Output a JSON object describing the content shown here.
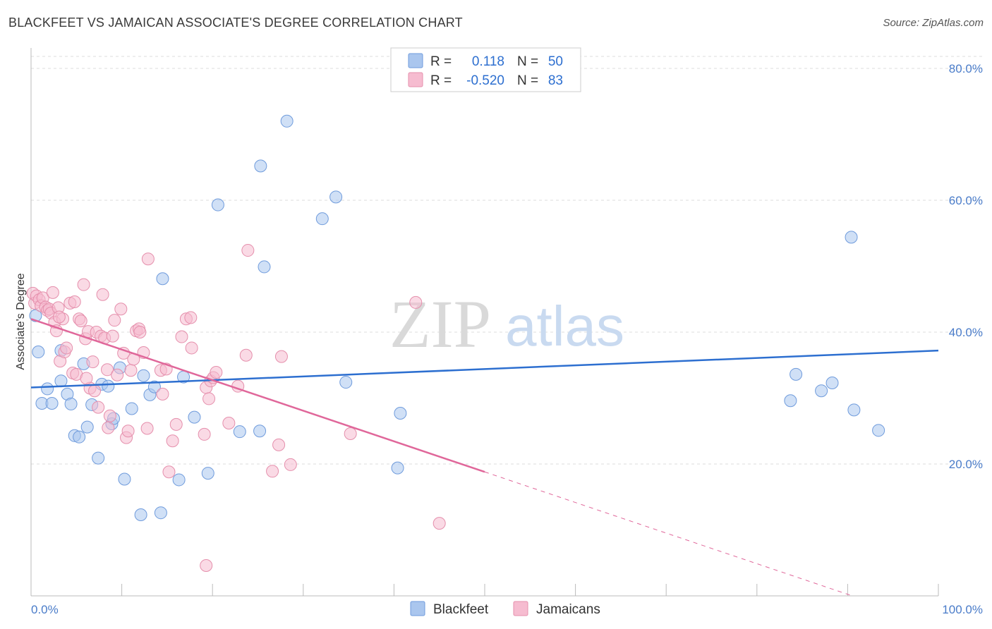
{
  "header": {
    "title": "BLACKFEET VS JAMAICAN ASSOCIATE'S DEGREE CORRELATION CHART",
    "source": "Source: ZipAtlas.com"
  },
  "watermark": {
    "zip": "ZIP",
    "atlas": "atlas"
  },
  "legend_box": {
    "rows": [
      {
        "r_label": "R =",
        "r_value": "0.118",
        "n_label": "N =",
        "n_value": "50"
      },
      {
        "r_label": "R =",
        "r_value": "-0.520",
        "n_label": "N =",
        "n_value": "83"
      }
    ]
  },
  "colors": {
    "blackfeet_fill": "#aac6ee",
    "blackfeet_stroke": "#6f9bdc",
    "blackfeet_line": "#2d6fd0",
    "jamaicans_fill": "#f6bcd0",
    "jamaicans_stroke": "#e58fac",
    "jamaicans_line": "#e0679a",
    "axis_text": "#4a7cc9",
    "grid": "#dddddd"
  },
  "chart_data": {
    "type": "scatter",
    "title": "BLACKFEET VS JAMAICAN ASSOCIATE'S DEGREE CORRELATION CHART",
    "xlabel": "",
    "ylabel": "Associate's Degree",
    "xlim": [
      0,
      100
    ],
    "ylim": [
      0,
      80
    ],
    "x_tick_labels": [
      "0.0%",
      "100.0%"
    ],
    "y_ticks": [
      20,
      40,
      60,
      80
    ],
    "y_tick_labels": [
      "20.0%",
      "40.0%",
      "60.0%",
      "80.0%"
    ],
    "grid": true,
    "legend_position": "bottom",
    "series": [
      {
        "name": "Blackfeet",
        "R": 0.118,
        "N": 50,
        "trend": {
          "x": [
            0,
            100
          ],
          "y": [
            31.6,
            37.2
          ],
          "dashed_from": null
        },
        "points": [
          [
            0.5,
            42.5
          ],
          [
            0.8,
            37.0
          ],
          [
            1.2,
            29.2
          ],
          [
            1.8,
            31.4
          ],
          [
            2.3,
            29.2
          ],
          [
            3.3,
            37.2
          ],
          [
            3.3,
            32.6
          ],
          [
            4.0,
            30.6
          ],
          [
            4.4,
            29.1
          ],
          [
            4.8,
            24.3
          ],
          [
            5.3,
            24.1
          ],
          [
            5.8,
            35.2
          ],
          [
            6.2,
            25.6
          ],
          [
            6.7,
            29.0
          ],
          [
            7.4,
            20.9
          ],
          [
            7.8,
            32.1
          ],
          [
            8.5,
            31.8
          ],
          [
            8.9,
            26.1
          ],
          [
            9.1,
            26.9
          ],
          [
            9.8,
            34.6
          ],
          [
            10.3,
            17.7
          ],
          [
            11.1,
            28.4
          ],
          [
            12.1,
            12.3
          ],
          [
            12.4,
            33.4
          ],
          [
            13.1,
            30.5
          ],
          [
            13.6,
            31.7
          ],
          [
            14.3,
            12.6
          ],
          [
            14.5,
            48.1
          ],
          [
            16.3,
            17.6
          ],
          [
            16.8,
            33.2
          ],
          [
            18.0,
            27.1
          ],
          [
            19.5,
            18.6
          ],
          [
            20.6,
            59.3
          ],
          [
            23.0,
            24.9
          ],
          [
            25.2,
            25.0
          ],
          [
            25.3,
            65.2
          ],
          [
            25.7,
            49.9
          ],
          [
            28.2,
            72.0
          ],
          [
            32.1,
            57.2
          ],
          [
            33.6,
            60.5
          ],
          [
            34.7,
            32.4
          ],
          [
            40.4,
            19.4
          ],
          [
            40.7,
            27.7
          ],
          [
            83.7,
            29.6
          ],
          [
            84.3,
            33.6
          ],
          [
            87.1,
            31.1
          ],
          [
            88.3,
            32.3
          ],
          [
            90.4,
            54.4
          ],
          [
            90.7,
            28.2
          ],
          [
            93.4,
            25.1
          ]
        ]
      },
      {
        "name": "Jamaicans",
        "R": -0.52,
        "N": 83,
        "trend": {
          "x": [
            0,
            100
          ],
          "y": [
            42.0,
            -4.4
          ],
          "dashed_from": 50.0
        },
        "points": [
          [
            0.2,
            45.9
          ],
          [
            0.4,
            44.4
          ],
          [
            0.6,
            45.5
          ],
          [
            0.9,
            44.9
          ],
          [
            1.1,
            44.0
          ],
          [
            1.3,
            45.2
          ],
          [
            1.6,
            43.8
          ],
          [
            1.8,
            43.3
          ],
          [
            2.0,
            43.5
          ],
          [
            2.2,
            42.9
          ],
          [
            2.4,
            46.0
          ],
          [
            2.6,
            41.5
          ],
          [
            2.8,
            40.2
          ],
          [
            3.0,
            43.7
          ],
          [
            3.2,
            35.6
          ],
          [
            3.5,
            42.0
          ],
          [
            3.7,
            37.0
          ],
          [
            3.9,
            37.6
          ],
          [
            4.3,
            44.4
          ],
          [
            4.6,
            33.8
          ],
          [
            4.8,
            44.6
          ],
          [
            5.0,
            33.6
          ],
          [
            5.3,
            42.0
          ],
          [
            5.5,
            41.7
          ],
          [
            5.8,
            47.2
          ],
          [
            6.0,
            39.0
          ],
          [
            6.3,
            40.1
          ],
          [
            6.5,
            31.5
          ],
          [
            6.8,
            35.5
          ],
          [
            7.0,
            31.1
          ],
          [
            7.2,
            40.0
          ],
          [
            7.4,
            28.6
          ],
          [
            7.7,
            39.4
          ],
          [
            7.9,
            45.7
          ],
          [
            8.1,
            39.1
          ],
          [
            8.4,
            34.3
          ],
          [
            8.5,
            25.5
          ],
          [
            8.7,
            27.3
          ],
          [
            9.0,
            39.4
          ],
          [
            9.2,
            41.8
          ],
          [
            9.5,
            33.5
          ],
          [
            9.9,
            43.5
          ],
          [
            10.2,
            36.8
          ],
          [
            10.5,
            24.0
          ],
          [
            10.7,
            25.0
          ],
          [
            11.0,
            34.2
          ],
          [
            11.3,
            35.9
          ],
          [
            11.6,
            40.2
          ],
          [
            11.9,
            40.5
          ],
          [
            12.4,
            36.9
          ],
          [
            12.8,
            25.4
          ],
          [
            12.9,
            51.1
          ],
          [
            14.3,
            34.2
          ],
          [
            14.5,
            30.6
          ],
          [
            14.9,
            34.4
          ],
          [
            15.2,
            18.8
          ],
          [
            15.6,
            23.5
          ],
          [
            16.0,
            26.0
          ],
          [
            16.6,
            39.3
          ],
          [
            17.1,
            42.0
          ],
          [
            17.6,
            42.2
          ],
          [
            17.7,
            37.6
          ],
          [
            19.1,
            24.5
          ],
          [
            19.3,
            31.6
          ],
          [
            19.3,
            4.6
          ],
          [
            19.6,
            29.9
          ],
          [
            19.8,
            32.6
          ],
          [
            20.1,
            33.1
          ],
          [
            20.4,
            33.9
          ],
          [
            21.8,
            26.2
          ],
          [
            22.8,
            31.8
          ],
          [
            23.7,
            36.5
          ],
          [
            23.9,
            52.4
          ],
          [
            26.6,
            18.9
          ],
          [
            27.3,
            22.9
          ],
          [
            27.6,
            36.3
          ],
          [
            28.6,
            19.9
          ],
          [
            35.2,
            24.6
          ],
          [
            42.4,
            44.5
          ],
          [
            45.0,
            11.0
          ],
          [
            3.1,
            42.3
          ],
          [
            6.1,
            33.0
          ],
          [
            12.0,
            40.0
          ]
        ]
      }
    ]
  }
}
